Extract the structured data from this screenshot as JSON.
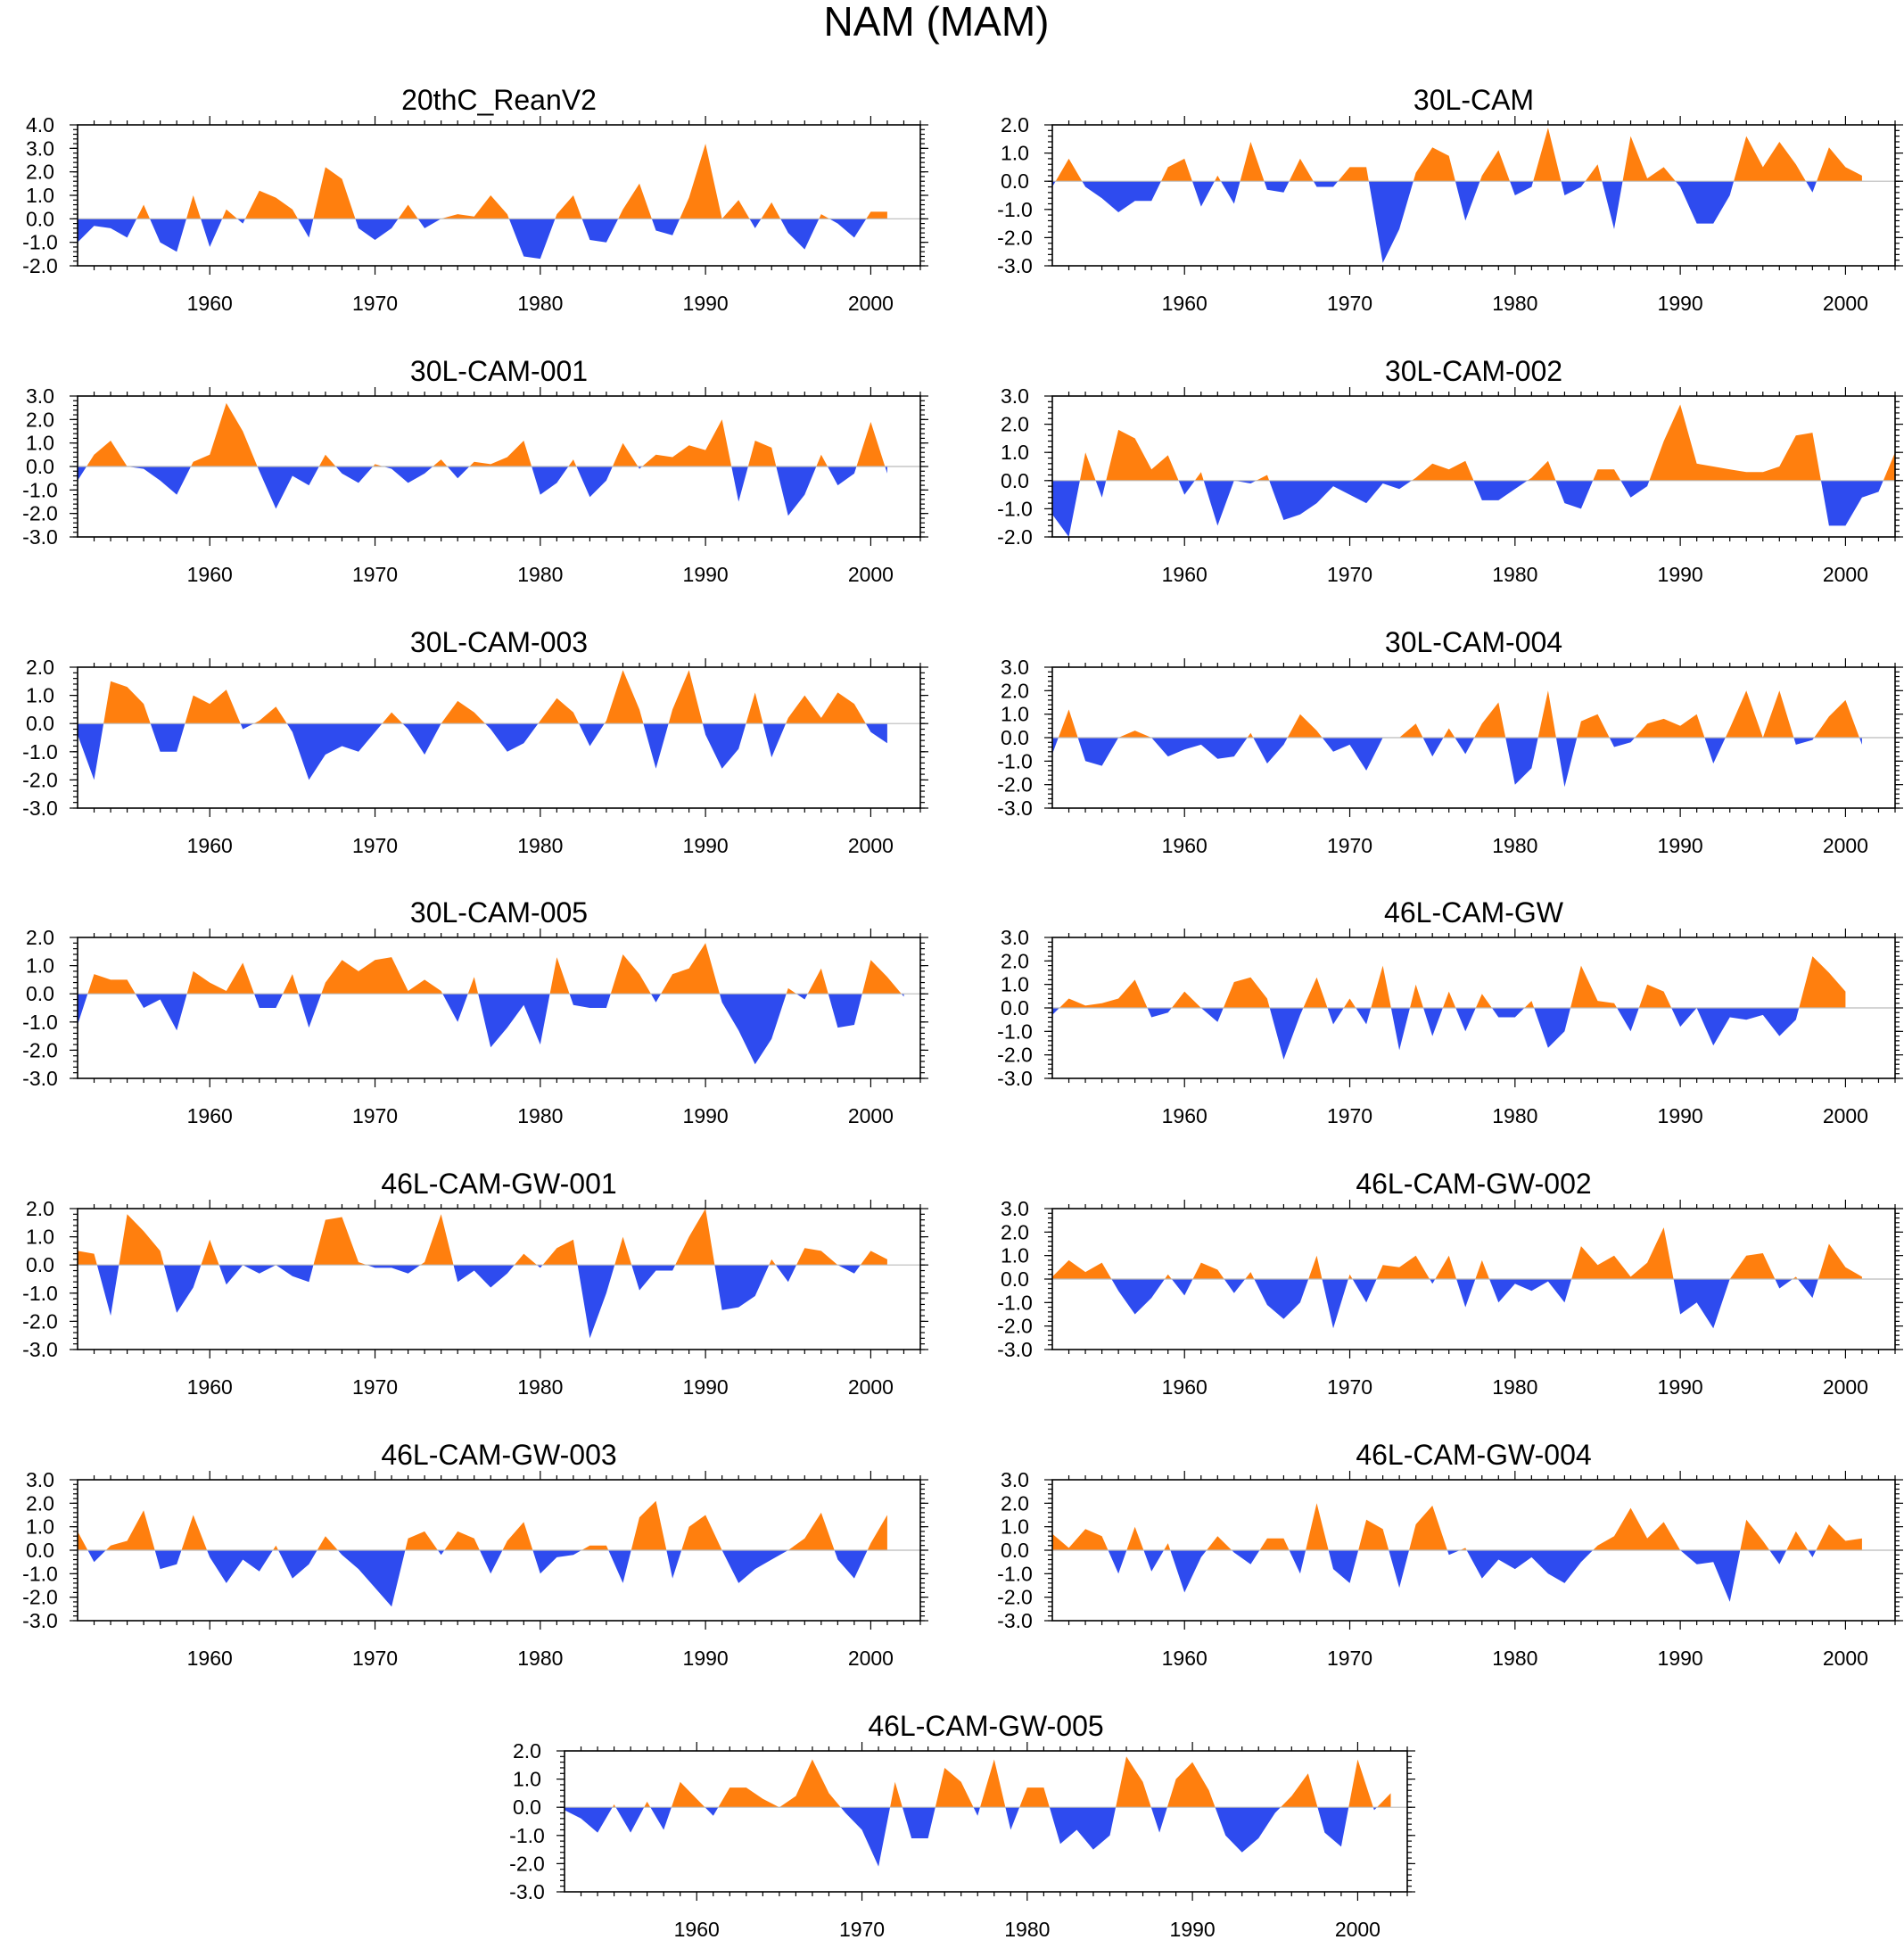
{
  "title": "NAM (MAM)",
  "colors": {
    "positive": "#ff7f0e",
    "negative": "#2e4bef"
  },
  "chart_data": [
    {
      "type": "area",
      "title": "20thC_ReanV2",
      "x_start": 1952,
      "xlim": [
        1952,
        2003
      ],
      "ylim": [
        -2.0,
        4.0
      ],
      "yticks": [
        "4.0",
        "3.0",
        "2.0",
        "1.0",
        "0.0",
        "-1.0",
        "-2.0"
      ],
      "xticks": [
        "1960",
        "1970",
        "1980",
        "1990",
        "2000"
      ],
      "values": [
        -1.0,
        -0.3,
        -0.4,
        -0.8,
        0.6,
        -1.0,
        -1.4,
        1.0,
        -1.2,
        0.4,
        -0.2,
        1.2,
        0.9,
        0.4,
        -0.8,
        2.2,
        1.7,
        -0.4,
        -0.9,
        -0.4,
        0.6,
        -0.4,
        0.0,
        0.2,
        0.1,
        1.0,
        0.2,
        -1.6,
        -1.7,
        0.2,
        1.0,
        -0.9,
        -1.0,
        0.4,
        1.5,
        -0.5,
        -0.7,
        0.9,
        3.2,
        0.0,
        0.8,
        -0.4,
        0.7,
        -0.6,
        -1.3,
        0.2,
        -0.2,
        -0.8,
        0.3,
        0.3
      ]
    },
    {
      "type": "area",
      "title": "30L-CAM",
      "x_start": 1952,
      "xlim": [
        1952,
        2003
      ],
      "ylim": [
        -3.0,
        2.0
      ],
      "yticks": [
        "2.0",
        "1.0",
        "0.0",
        "-1.0",
        "-2.0",
        "-3.0"
      ],
      "xticks": [
        "1960",
        "1970",
        "1980",
        "1990",
        "2000"
      ],
      "values": [
        -0.2,
        0.8,
        -0.2,
        -0.6,
        -1.1,
        -0.7,
        -0.7,
        0.5,
        0.8,
        -0.9,
        0.2,
        -0.8,
        1.4,
        -0.3,
        -0.4,
        0.8,
        -0.2,
        -0.2,
        0.5,
        0.5,
        -2.9,
        -1.7,
        0.3,
        1.2,
        0.9,
        -1.4,
        0.2,
        1.1,
        -0.5,
        -0.2,
        1.9,
        -0.5,
        -0.2,
        0.6,
        -1.7,
        1.6,
        0.1,
        0.5,
        -0.2,
        -1.5,
        -1.5,
        -0.5,
        1.6,
        0.5,
        1.4,
        0.6,
        -0.4,
        1.2,
        0.5,
        0.2
      ]
    },
    {
      "type": "area",
      "title": "30L-CAM-001",
      "x_start": 1952,
      "xlim": [
        1952,
        2003
      ],
      "ylim": [
        -3.0,
        3.0
      ],
      "yticks": [
        "3.0",
        "2.0",
        "1.0",
        "0.0",
        "-1.0",
        "-2.0",
        "-3.0"
      ],
      "xticks": [
        "1960",
        "1970",
        "1980",
        "1990",
        "2000"
      ],
      "values": [
        -0.6,
        0.5,
        1.1,
        0.0,
        -0.1,
        -0.6,
        -1.2,
        0.2,
        0.5,
        2.7,
        1.5,
        -0.2,
        -1.8,
        -0.4,
        -0.8,
        0.5,
        -0.3,
        -0.7,
        0.1,
        -0.1,
        -0.7,
        -0.3,
        0.3,
        -0.5,
        0.2,
        0.1,
        0.4,
        1.1,
        -1.2,
        -0.7,
        0.3,
        -1.3,
        -0.6,
        1.0,
        -0.1,
        0.5,
        0.4,
        0.9,
        0.7,
        2.0,
        -1.5,
        1.1,
        0.8,
        -2.1,
        -1.2,
        0.5,
        -0.8,
        -0.3,
        1.9,
        -0.3
      ]
    },
    {
      "type": "area",
      "title": "30L-CAM-002",
      "x_start": 1952,
      "xlim": [
        1952,
        2003
      ],
      "ylim": [
        -2.0,
        3.0
      ],
      "yticks": [
        "3.0",
        "2.0",
        "1.0",
        "0.0",
        "-1.0",
        "-2.0"
      ],
      "xticks": [
        "1960",
        "1970",
        "1980",
        "1990",
        "2000"
      ],
      "values": [
        -1.2,
        -2.0,
        1.0,
        -0.6,
        1.8,
        1.5,
        0.4,
        0.9,
        -0.5,
        0.3,
        -1.6,
        0.0,
        -0.1,
        0.2,
        -1.4,
        -1.2,
        -0.8,
        -0.2,
        -0.5,
        -0.8,
        -0.1,
        -0.3,
        0.1,
        0.6,
        0.4,
        0.7,
        -0.7,
        -0.7,
        -0.3,
        0.1,
        0.7,
        -0.8,
        -1.0,
        0.4,
        0.4,
        -0.6,
        -0.2,
        1.4,
        2.7,
        0.6,
        0.5,
        0.4,
        0.3,
        0.3,
        0.5,
        1.6,
        1.7,
        -1.6,
        -1.6,
        -0.6,
        -0.4,
        1.0
      ]
    },
    {
      "type": "area",
      "title": "30L-CAM-003",
      "x_start": 1952,
      "xlim": [
        1952,
        2003
      ],
      "ylim": [
        -3.0,
        2.0
      ],
      "yticks": [
        "2.0",
        "1.0",
        "0.0",
        "-1.0",
        "-2.0",
        "-3.0"
      ],
      "xticks": [
        "1960",
        "1970",
        "1980",
        "1990",
        "2000"
      ],
      "values": [
        -0.4,
        -2.0,
        1.5,
        1.3,
        0.7,
        -1.0,
        -1.0,
        1.0,
        0.7,
        1.2,
        -0.2,
        0.1,
        0.6,
        -0.3,
        -2.0,
        -1.1,
        -0.8,
        -1.0,
        -0.3,
        0.4,
        -0.2,
        -1.1,
        0.0,
        0.8,
        0.4,
        -0.2,
        -1.0,
        -0.7,
        0.1,
        0.9,
        0.4,
        -0.8,
        0.1,
        1.9,
        0.5,
        -1.6,
        0.5,
        1.9,
        -0.4,
        -1.6,
        -0.9,
        1.1,
        -1.2,
        0.2,
        1.0,
        0.2,
        1.1,
        0.7,
        -0.3,
        -0.7
      ]
    },
    {
      "type": "area",
      "title": "30L-CAM-004",
      "x_start": 1952,
      "xlim": [
        1952,
        2003
      ],
      "ylim": [
        -3.0,
        3.0
      ],
      "yticks": [
        "3.0",
        "2.0",
        "1.0",
        "0.0",
        "-1.0",
        "-2.0",
        "-3.0"
      ],
      "xticks": [
        "1960",
        "1970",
        "1980",
        "1990",
        "2000"
      ],
      "values": [
        -0.7,
        1.2,
        -1.0,
        -1.2,
        0.0,
        0.3,
        0.0,
        -0.8,
        -0.5,
        -0.3,
        -0.9,
        -0.8,
        0.2,
        -1.1,
        -0.3,
        1.0,
        0.3,
        -0.6,
        -0.3,
        -1.4,
        0.0,
        0.0,
        0.6,
        -0.8,
        0.4,
        -0.7,
        0.6,
        1.5,
        -2.0,
        -1.3,
        2.0,
        -2.1,
        0.7,
        1.0,
        -0.4,
        -0.2,
        0.6,
        0.8,
        0.5,
        1.0,
        -1.1,
        0.4,
        2.0,
        0.0,
        2.0,
        -0.3,
        -0.1,
        0.9,
        1.6,
        -0.3
      ]
    },
    {
      "type": "area",
      "title": "30L-CAM-005",
      "x_start": 1952,
      "xlim": [
        1952,
        2003
      ],
      "ylim": [
        -3.0,
        2.0
      ],
      "yticks": [
        "2.0",
        "1.0",
        "0.0",
        "-1.0",
        "-2.0",
        "-3.0"
      ],
      "xticks": [
        "1960",
        "1970",
        "1980",
        "1990",
        "2000"
      ],
      "values": [
        -1.1,
        0.7,
        0.5,
        0.5,
        -0.5,
        -0.2,
        -1.3,
        0.8,
        0.4,
        0.1,
        1.1,
        -0.5,
        -0.5,
        0.7,
        -1.2,
        0.4,
        1.2,
        0.8,
        1.2,
        1.3,
        0.1,
        0.5,
        0.1,
        -1.0,
        0.6,
        -1.9,
        -1.2,
        -0.4,
        -1.8,
        1.3,
        -0.4,
        -0.5,
        -0.5,
        1.4,
        0.7,
        -0.3,
        0.7,
        0.9,
        1.8,
        -0.3,
        -1.3,
        -2.5,
        -1.6,
        0.2,
        -0.2,
        0.9,
        -1.2,
        -1.1,
        1.2,
        0.6,
        -0.1
      ]
    },
    {
      "type": "area",
      "title": "46L-CAM-GW",
      "x_start": 1952,
      "xlim": [
        1952,
        2003
      ],
      "ylim": [
        -3.0,
        3.0
      ],
      "yticks": [
        "3.0",
        "2.0",
        "1.0",
        "0.0",
        "-1.0",
        "-2.0",
        "-3.0"
      ],
      "xticks": [
        "1960",
        "1970",
        "1980",
        "1990",
        "2000"
      ],
      "values": [
        -0.3,
        0.4,
        0.1,
        0.2,
        0.4,
        1.2,
        -0.4,
        -0.2,
        0.7,
        0.0,
        -0.6,
        1.1,
        1.3,
        0.4,
        -2.2,
        -0.3,
        1.3,
        -0.7,
        0.4,
        -0.7,
        1.8,
        -1.8,
        1.0,
        -1.2,
        0.7,
        -1.0,
        0.6,
        -0.4,
        -0.4,
        0.3,
        -1.7,
        -1.0,
        1.8,
        0.3,
        0.2,
        -1.0,
        1.0,
        0.7,
        -0.8,
        0.0,
        -1.6,
        -0.4,
        -0.5,
        -0.3,
        -1.2,
        -0.5,
        2.2,
        1.5,
        0.7
      ]
    },
    {
      "type": "area",
      "title": "46L-CAM-GW-001",
      "x_start": 1952,
      "xlim": [
        1952,
        2003
      ],
      "ylim": [
        -3.0,
        2.0
      ],
      "yticks": [
        "2.0",
        "1.0",
        "0.0",
        "-1.0",
        "-2.0",
        "-3.0"
      ],
      "xticks": [
        "1960",
        "1970",
        "1980",
        "1990",
        "2000"
      ],
      "values": [
        0.5,
        0.4,
        -1.8,
        1.8,
        1.2,
        0.5,
        -1.7,
        -0.8,
        0.9,
        -0.7,
        0.0,
        -0.3,
        0.0,
        -0.4,
        -0.6,
        1.6,
        1.7,
        0.1,
        -0.1,
        -0.1,
        -0.3,
        0.1,
        1.8,
        -0.6,
        -0.2,
        -0.8,
        -0.3,
        0.4,
        -0.1,
        0.6,
        0.9,
        -2.6,
        -1.0,
        1.0,
        -0.9,
        -0.2,
        -0.2,
        1.0,
        2.0,
        -1.6,
        -1.5,
        -1.1,
        0.2,
        -0.6,
        0.6,
        0.5,
        0.0,
        -0.3,
        0.5,
        0.2
      ]
    },
    {
      "type": "area",
      "title": "46L-CAM-GW-002",
      "x_start": 1952,
      "xlim": [
        1952,
        2003
      ],
      "ylim": [
        -3.0,
        3.0
      ],
      "yticks": [
        "3.0",
        "2.0",
        "1.0",
        "0.0",
        "-1.0",
        "-2.0",
        "-3.0"
      ],
      "xticks": [
        "1960",
        "1970",
        "1980",
        "1990",
        "2000"
      ],
      "values": [
        0.1,
        0.8,
        0.3,
        0.7,
        -0.5,
        -1.5,
        -0.8,
        0.2,
        -0.7,
        0.7,
        0.4,
        -0.6,
        0.3,
        -1.1,
        -1.7,
        -1.0,
        1.0,
        -2.1,
        0.2,
        -1.0,
        0.6,
        0.5,
        1.0,
        -0.2,
        1.0,
        -1.2,
        0.8,
        -1.0,
        -0.2,
        -0.5,
        -0.1,
        -1.0,
        1.4,
        0.6,
        1.0,
        0.1,
        0.7,
        2.2,
        -1.5,
        -1.0,
        -2.1,
        0.0,
        1.0,
        1.1,
        -0.4,
        0.1,
        -0.8,
        1.5,
        0.5,
        0.1
      ]
    },
    {
      "type": "area",
      "title": "46L-CAM-GW-003",
      "x_start": 1952,
      "xlim": [
        1952,
        2003
      ],
      "ylim": [
        -3.0,
        3.0
      ],
      "yticks": [
        "3.0",
        "2.0",
        "1.0",
        "0.0",
        "-1.0",
        "-2.0",
        "-3.0"
      ],
      "xticks": [
        "1960",
        "1970",
        "1980",
        "1990",
        "2000"
      ],
      "values": [
        0.8,
        -0.5,
        0.2,
        0.4,
        1.7,
        -0.8,
        -0.6,
        1.5,
        -0.3,
        -1.4,
        -0.4,
        -0.9,
        0.2,
        -1.2,
        -0.6,
        0.6,
        -0.2,
        -0.8,
        -1.6,
        -2.4,
        0.5,
        0.8,
        -0.2,
        0.8,
        0.5,
        -1.0,
        0.4,
        1.2,
        -1.0,
        -0.3,
        -0.2,
        0.2,
        0.2,
        -1.4,
        1.4,
        2.1,
        -1.2,
        1.0,
        1.5,
        0.0,
        -1.4,
        -0.8,
        -0.4,
        0.0,
        0.5,
        1.6,
        -0.4,
        -1.2,
        0.3,
        1.5
      ]
    },
    {
      "type": "area",
      "title": "46L-CAM-GW-004",
      "x_start": 1952,
      "xlim": [
        1952,
        2003
      ],
      "ylim": [
        -3.0,
        3.0
      ],
      "yticks": [
        "3.0",
        "2.0",
        "1.0",
        "0.0",
        "-1.0",
        "-2.0",
        "-3.0"
      ],
      "xticks": [
        "1960",
        "1970",
        "1980",
        "1990",
        "2000"
      ],
      "values": [
        0.7,
        0.1,
        0.9,
        0.6,
        -1.0,
        1.0,
        -0.9,
        0.3,
        -1.8,
        -0.3,
        0.6,
        -0.1,
        -0.6,
        0.5,
        0.5,
        -1.0,
        2.0,
        -0.8,
        -1.4,
        1.3,
        0.9,
        -1.6,
        1.1,
        1.9,
        -0.2,
        0.1,
        -1.2,
        -0.4,
        -0.8,
        -0.3,
        -1.0,
        -1.4,
        -0.5,
        0.2,
        0.6,
        1.8,
        0.5,
        1.2,
        0.0,
        -0.6,
        -0.5,
        -2.2,
        1.3,
        0.4,
        -0.6,
        0.8,
        -0.3,
        1.1,
        0.4,
        0.5
      ]
    },
    {
      "type": "area",
      "title": "46L-CAM-GW-005",
      "x_start": 1952,
      "xlim": [
        1952,
        2003
      ],
      "ylim": [
        -3.0,
        2.0
      ],
      "yticks": [
        "2.0",
        "1.0",
        "0.0",
        "-1.0",
        "-2.0",
        "-3.0"
      ],
      "xticks": [
        "1960",
        "1970",
        "1980",
        "1990",
        "2000"
      ],
      "values": [
        -0.1,
        -0.4,
        -0.9,
        0.1,
        -0.9,
        0.2,
        -0.8,
        0.9,
        0.3,
        -0.3,
        0.7,
        0.7,
        0.3,
        0.0,
        0.4,
        1.7,
        0.5,
        -0.2,
        -0.8,
        -2.1,
        0.9,
        -1.1,
        -1.1,
        1.4,
        0.9,
        -0.3,
        1.7,
        -0.8,
        0.7,
        0.7,
        -1.3,
        -0.8,
        -1.5,
        -1.0,
        1.8,
        0.9,
        -0.9,
        1.0,
        1.6,
        0.6,
        -1.0,
        -1.6,
        -1.1,
        -0.2,
        0.4,
        1.2,
        -0.9,
        -1.4,
        1.7,
        -0.1,
        0.5
      ]
    }
  ]
}
